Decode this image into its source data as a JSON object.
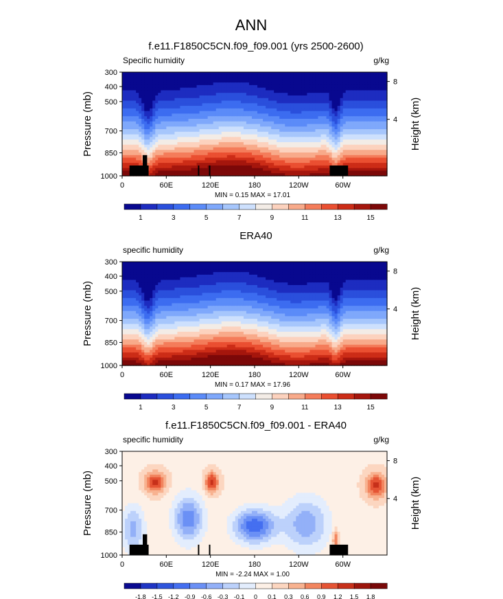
{
  "figure": {
    "title": "ANN"
  },
  "palettes": {
    "abs": [
      "#08088f",
      "#1d2cc0",
      "#2a4fdc",
      "#3c6cf0",
      "#5b8bf8",
      "#7fa8fb",
      "#a6c6fc",
      "#cde0fd",
      "#f3ece6",
      "#fcd2be",
      "#f8aa8a",
      "#f47c5a",
      "#ea4f31",
      "#cc2c17",
      "#a5160d",
      "#7c0808"
    ],
    "diff": [
      "#0a0a90",
      "#1f35c4",
      "#2f55dc",
      "#456ff0",
      "#6b90f5",
      "#93b0f8",
      "#bcd1fb",
      "#e3edfd",
      "#fdf0e6",
      "#fcd6c0",
      "#f8b290",
      "#f2855f",
      "#e55434",
      "#c7301a",
      "#9c150c",
      "#780808"
    ]
  },
  "chart_data": [
    {
      "type": "heatmap",
      "title": "f.e11.F1850C5CN.f09_f09.001 (yrs 2500-2600)",
      "left_label": "Specific humidity",
      "units": "g/kg",
      "ylabel": "Pressure (mb)",
      "y2label": "Height (km)",
      "yticks": [
        "300",
        "400",
        "500",
        "700",
        "850",
        "1000"
      ],
      "y2ticks": [
        "8",
        "4"
      ],
      "xticks": [
        "0",
        "60E",
        "120E",
        "180",
        "120W",
        "60W"
      ],
      "stats": "MIN =  0.15  MAX =  17.01",
      "colorbar_labels": [
        "1",
        "3",
        "5",
        "7",
        "9",
        "11",
        "13",
        "15"
      ],
      "palette": "abs",
      "min": 0.15,
      "max": 17.01,
      "xlim": [
        0,
        360
      ],
      "ylim": [
        1000,
        300
      ],
      "land_mask": true
    },
    {
      "type": "heatmap",
      "title": "ERA40",
      "left_label": "specific humidity",
      "units": "g/kg",
      "ylabel": "Pressure (mb)",
      "y2label": "Height (km)",
      "yticks": [
        "300",
        "400",
        "500",
        "700",
        "850",
        "1000"
      ],
      "y2ticks": [
        "8",
        "4"
      ],
      "xticks": [
        "0",
        "60E",
        "120E",
        "180",
        "120W",
        "60W"
      ],
      "stats": "MIN =  0.17  MAX =  17.96",
      "colorbar_labels": [
        "1",
        "3",
        "5",
        "7",
        "9",
        "11",
        "13",
        "15"
      ],
      "palette": "abs",
      "min": 0.17,
      "max": 17.96,
      "xlim": [
        0,
        360
      ],
      "ylim": [
        1000,
        300
      ],
      "land_mask": false
    },
    {
      "type": "heatmap",
      "title": "f.e11.F1850C5CN.f09_f09.001 - ERA40",
      "left_label": "specific humidity",
      "units": "g/kg",
      "ylabel": "Pressure (mb)",
      "y2label": "Height (km)",
      "yticks": [
        "300",
        "400",
        "500",
        "700",
        "850",
        "1000"
      ],
      "y2ticks": [
        "8",
        "4"
      ],
      "xticks": [
        "0",
        "60E",
        "120E",
        "180",
        "120W",
        "60W"
      ],
      "stats": "MIN = -2.24  MAX =  1.00",
      "colorbar_labels": [
        "-1.8",
        "-1.5",
        "-1.2",
        "-0.9",
        "-0.6",
        "-0.3",
        "-0.1",
        "0",
        "0.1",
        "0.3",
        "0.6",
        "0.9",
        "1.2",
        "1.5",
        "1.8"
      ],
      "palette": "diff",
      "min": -2.24,
      "max": 1.0,
      "xlim": [
        0,
        360
      ],
      "ylim": [
        1000,
        300
      ],
      "land_mask": true
    }
  ]
}
